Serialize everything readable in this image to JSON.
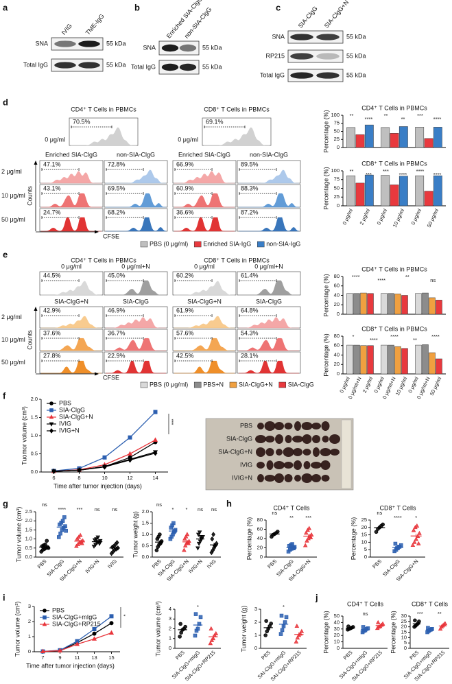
{
  "panel_labels": [
    "a",
    "b",
    "c",
    "d",
    "e",
    "f",
    "g",
    "h",
    "i",
    "j"
  ],
  "blots": {
    "a": {
      "lanes": [
        "IVIG",
        "TME-IgG"
      ],
      "rows": [
        "SNA",
        "Total IgG"
      ],
      "size": "55 kDa"
    },
    "b": {
      "lanes": [
        "Enriched SIA-ClgG",
        "non-SIA-ClgG"
      ],
      "rows": [
        "SNA",
        "Total IgG"
      ],
      "size": "55 kDa"
    },
    "c": {
      "lanes": [
        "SIA-ClgG",
        "SIA-ClgG+N"
      ],
      "rows": [
        "SNA",
        "RP215",
        "Total IgG"
      ],
      "size": "55 kDa"
    }
  },
  "flow": {
    "d": {
      "panels": [
        {
          "title": "CD4⁺ T Cells in PBMCs",
          "controls": [
            {
              "label": "0 μg/ml",
              "pct": "70.5%"
            }
          ],
          "columns": [
            {
              "name": "Enriched SIA-ClgG",
              "pcts": [
                "47.1%",
                "43.1%",
                "24.7%"
              ]
            },
            {
              "name": "non-SIA-ClgG",
              "pcts": [
                "72.8%",
                "69.5%",
                "68.2%"
              ]
            }
          ]
        },
        {
          "title": "CD8⁺ T Cells in PBMCs",
          "controls": [
            {
              "label": "0 μg/ml",
              "pct": "69.1%"
            }
          ],
          "columns": [
            {
              "name": "Enriched SIA-ClgG",
              "pcts": [
                "66.9%",
                "60.9%",
                "36.6%"
              ]
            },
            {
              "name": "non-SIA-ClgG",
              "pcts": [
                "89.5%",
                "88.3%",
                "87.2%"
              ]
            }
          ]
        }
      ],
      "doses": [
        "2 μg/ml",
        "10 μg/ml",
        "50 μg/ml"
      ],
      "ylabel": "Counts",
      "xlabel": "CFSE"
    },
    "e": {
      "panels": [
        {
          "title": "CD4⁺ T Cells in PBMCs",
          "controls": [
            {
              "label": "0 μg/ml",
              "pct": "44.5%"
            },
            {
              "label": "0 μg/ml+N",
              "pct": "45.0%"
            }
          ],
          "columns": [
            {
              "name": "SIA-ClgG+N",
              "pcts": [
                "42.9%",
                "37.6%",
                "27.8%"
              ]
            },
            {
              "name": "SIA-ClgG",
              "pcts": [
                "46.9%",
                "36.7%",
                "22.9%"
              ]
            }
          ]
        },
        {
          "title": "CD8⁺ T Cells in PBMCs",
          "controls": [
            {
              "label": "0 μg/ml",
              "pct": "60.2%"
            },
            {
              "label": "0 μg/ml+N",
              "pct": "61.4%"
            }
          ],
          "columns": [
            {
              "name": "SIA-ClgG+N",
              "pcts": [
                "61.9%",
                "57.6%",
                "42.5%"
              ]
            },
            {
              "name": "SIA-ClgG",
              "pcts": [
                "64.8%",
                "54.3%",
                "28.1%"
              ]
            }
          ]
        }
      ],
      "doses": [
        "2 μg/ml",
        "10 μg/ml",
        "50 μg/ml"
      ],
      "ylabel": "Counts",
      "xlabel": "CFSE"
    }
  },
  "photo": {
    "rows": [
      "PBS",
      "SIA-ClgG",
      "SIA-ClgG+N",
      "IVIG",
      "IVIG+N"
    ]
  },
  "chart_data": [
    {
      "type": "bar",
      "title": "CD4⁺ T Cells in PBMCs",
      "ylabel": "Percentage (%)",
      "ylim": [
        0,
        100
      ],
      "yticks": [
        0,
        25,
        50,
        75,
        100
      ],
      "series": [
        {
          "color": "#bfbfbf",
          "values": [
            62,
            62,
            63
          ]
        },
        {
          "color": "#e8393e",
          "values": [
            40,
            44,
            28
          ]
        },
        {
          "color": "#3a7ec6",
          "values": [
            70,
            65,
            63
          ]
        }
      ],
      "annotations": [
        "**",
        "****",
        "**",
        "**",
        "***",
        "****"
      ]
    },
    {
      "type": "bar",
      "title": "CD8⁺ T Cells in PBMCs",
      "ylabel": "Percentage (%)",
      "ylim": [
        0,
        100
      ],
      "yticks": [
        0,
        25,
        50,
        75,
        100
      ],
      "series": [
        {
          "name": "PBS (0 μg/ml)",
          "color": "#bfbfbf",
          "values": [
            86,
            87,
            86
          ]
        },
        {
          "name": "Enriched SIA-IgG",
          "color": "#e8393e",
          "values": [
            65,
            60,
            42
          ]
        },
        {
          "name": "non-SIA-IgG",
          "color": "#3a7ec6",
          "values": [
            88,
            85,
            86
          ]
        }
      ],
      "group_labels": [
        [
          "0 μg/ml",
          "2 μg/ml"
        ],
        [
          "0 μg/ml",
          "10 μg/ml"
        ],
        [
          "0 μg/ml",
          "50 μg/ml"
        ]
      ],
      "annotations": [
        "**",
        "***",
        "***",
        "****",
        "****",
        "****"
      ]
    },
    {
      "type": "bar",
      "title": "CD4⁺ T Cells in PBMCs",
      "ylabel": "Percentage (%)",
      "ylim": [
        0,
        80
      ],
      "yticks": [
        0,
        20,
        40,
        60,
        80
      ],
      "series": [
        {
          "color": "#d9d9d9",
          "values": [
            44,
            44,
            44
          ]
        },
        {
          "color": "#8c8c8c",
          "values": [
            44,
            44,
            45
          ]
        },
        {
          "color": "#f0a040",
          "values": [
            45,
            43,
            35
          ]
        },
        {
          "color": "#e8393e",
          "values": [
            44,
            40,
            30
          ]
        }
      ],
      "annotations": [
        "****",
        "****",
        "**",
        "ns"
      ]
    },
    {
      "type": "bar",
      "title": "CD8⁺ T Cells in PBMCs",
      "ylabel": "Percentage (%)",
      "ylim": [
        0,
        80
      ],
      "yticks": [
        0,
        20,
        40,
        60,
        80
      ],
      "series": [
        {
          "name": "PBS (0 μg/ml)",
          "color": "#d9d9d9",
          "values": [
            61,
            61,
            61
          ]
        },
        {
          "name": "PBS+N",
          "color": "#8c8c8c",
          "values": [
            61,
            61,
            62
          ]
        },
        {
          "name": "SIA-ClgG+N",
          "color": "#f0a040",
          "values": [
            60,
            58,
            45
          ]
        },
        {
          "name": "SIA-ClgG",
          "color": "#e8393e",
          "values": [
            60,
            54,
            32
          ]
        }
      ],
      "group_labels": [
        [
          "0 μg/ml",
          "0 μg/ml+N",
          "2 μg/ml"
        ],
        [
          "0 μg/ml",
          "0 μg/ml+N",
          "10 μg/ml"
        ],
        [
          "0 μg/ml",
          "0 μg/ml+N",
          "50 μg/ml"
        ]
      ],
      "annotations": [
        "*",
        "****",
        "****",
        "**",
        "****"
      ]
    },
    {
      "type": "line",
      "ylabel": "Tuomor volume (cm³)",
      "xlabel": "Time after tumor injection (days)",
      "x": [
        6,
        8,
        10,
        12,
        14
      ],
      "xlim": [
        5,
        15
      ],
      "xticks": [
        6,
        8,
        10,
        12,
        14
      ],
      "ylim": [
        0,
        2
      ],
      "yticks": [
        {
          "value": 0,
          "label": "0.0"
        },
        0.5,
        {
          "value": 1,
          "label": "1.0"
        },
        1.5,
        {
          "value": 2,
          "label": "2.0"
        }
      ],
      "series": [
        {
          "name": "PBS",
          "color": "#000000",
          "marker": "circle",
          "values": [
            0.02,
            0.05,
            0.15,
            0.4,
            0.82
          ]
        },
        {
          "name": "SIA-ClgG",
          "color": "#2c5fb0",
          "marker": "square",
          "values": [
            0.03,
            0.1,
            0.4,
            0.95,
            1.65
          ]
        },
        {
          "name": "SIA-ClgG+N",
          "color": "#e8343a",
          "marker": "triangle",
          "values": [
            0.02,
            0.06,
            0.2,
            0.5,
            0.88
          ]
        },
        {
          "name": "IVIG",
          "color": "#000000",
          "marker": "triangle-down",
          "values": [
            0.02,
            0.05,
            0.15,
            0.35,
            0.55
          ]
        },
        {
          "name": "IVIG+N",
          "color": "#000000",
          "marker": "diamond",
          "values": [
            0.02,
            0.05,
            0.14,
            0.33,
            0.52
          ]
        }
      ],
      "annotations": [
        "***"
      ]
    },
    {
      "type": "strip",
      "ylabel": "Tumor volume (cm³)",
      "categories": [
        "PBS",
        "SIA-ClgG",
        "SIA-ClgG+N",
        "IVIG+N",
        "IVIG"
      ],
      "colors": [
        "#000000",
        "#2c5fb0",
        "#e8343a",
        "#000000",
        "#000000"
      ],
      "markers": [
        "circle",
        "square",
        "triangle",
        "triangle-down",
        "diamond"
      ],
      "values": [
        [
          0.3,
          0.4,
          0.45,
          0.5,
          0.55,
          0.6,
          0.65,
          0.7,
          0.9,
          0.5
        ],
        [
          1.1,
          1.3,
          1.5,
          1.6,
          1.7,
          1.8,
          1.9,
          2.0,
          2.2,
          1.45
        ],
        [
          0.6,
          0.7,
          0.8,
          0.85,
          0.9,
          1.0,
          1.1,
          1.2,
          0.75
        ],
        [
          0.6,
          0.7,
          0.8,
          0.85,
          0.9,
          0.95,
          1.0,
          1.1,
          0.75
        ],
        [
          0.2,
          0.3,
          0.4,
          0.45,
          0.5,
          0.55,
          0.6,
          0.7,
          0.8
        ]
      ],
      "ylim": [
        0,
        2.5
      ],
      "yticks": [
        {
          "value": 0,
          "label": "0.0"
        },
        0.5,
        {
          "value": 1,
          "label": "1.0"
        },
        1.5,
        {
          "value": 2,
          "label": "2.0"
        },
        2.5
      ],
      "annotations": [
        "ns",
        "****",
        "***",
        "ns",
        "ns"
      ]
    },
    {
      "type": "strip",
      "ylabel": "Tumor weight (g)",
      "categories": [
        "PBS",
        "SIA-ClgG",
        "SIA-ClgG+N",
        "IVIG+N",
        "IVIG"
      ],
      "colors": [
        "#000000",
        "#2c5fb0",
        "#e8343a",
        "#000000",
        "#000000"
      ],
      "markers": [
        "circle",
        "square",
        "triangle",
        "triangle-down",
        "diamond"
      ],
      "values": [
        [
          0.3,
          0.45,
          0.55,
          0.6,
          0.7,
          0.8,
          0.9,
          1.0,
          0.65
        ],
        [
          0.8,
          0.9,
          1.0,
          1.1,
          1.2,
          1.3,
          1.4,
          1.5,
          1.15
        ],
        [
          0.3,
          0.5,
          0.6,
          0.65,
          0.7,
          0.8,
          0.9,
          1.0,
          0.6
        ],
        [
          0.4,
          0.6,
          0.7,
          0.8,
          0.9,
          1.0,
          1.1,
          0.9
        ],
        [
          0.2,
          0.3,
          0.4,
          0.5,
          0.6,
          0.8,
          1.0,
          0.5
        ]
      ],
      "ylim": [
        0,
        2
      ],
      "yticks": [
        {
          "value": 0,
          "label": "0.0"
        },
        0.5,
        {
          "value": 1,
          "label": "1.0"
        },
        1.5,
        {
          "value": 2,
          "label": "2.0"
        }
      ],
      "annotations": [
        "ns",
        "*",
        "*",
        "ns",
        "ns"
      ]
    },
    {
      "type": "strip",
      "title": "CD4⁺ T Cells",
      "ylabel": "Percentage (%)",
      "categories": [
        "PBS",
        "SIA-ClgG",
        "SIA-ClgG+N"
      ],
      "colors": [
        "#000000",
        "#2c5fb0",
        "#e8343a"
      ],
      "markers": [
        "circle",
        "square",
        "triangle"
      ],
      "values": [
        [
          44,
          48,
          50,
          52,
          55
        ],
        [
          12,
          16,
          18,
          20,
          22,
          24,
          26,
          28,
          19
        ],
        [
          25,
          35,
          40,
          45,
          48,
          52,
          58,
          62,
          42
        ]
      ],
      "ylim": [
        0,
        80
      ],
      "yticks": [
        0,
        20,
        40,
        60,
        80
      ],
      "annotations": [
        "ns",
        "**",
        "***"
      ]
    },
    {
      "type": "strip",
      "title": "CD8⁺ T Cells",
      "ylabel": "Percentage (%)",
      "categories": [
        "PBS",
        "SIA-ClgG",
        "SIA-ClgG+N"
      ],
      "colors": [
        "#000000",
        "#2c5fb0",
        "#e8343a"
      ],
      "markers": [
        "circle",
        "square",
        "triangle"
      ],
      "values": [
        [
          17,
          19,
          20,
          21,
          22
        ],
        [
          4,
          5,
          6,
          7,
          8,
          9,
          6,
          7
        ],
        [
          8,
          10,
          12,
          14,
          16,
          18,
          20,
          21,
          9
        ]
      ],
      "ylim": [
        0,
        25
      ],
      "yticks": [
        0,
        5,
        10,
        15,
        20,
        25
      ],
      "annotations": [
        "ns",
        "****",
        "*"
      ]
    },
    {
      "type": "line",
      "ylabel": "Tumor volume (cm³)",
      "xlabel": "Time after tumor injection (days)",
      "x": [
        7,
        9,
        11,
        13,
        15
      ],
      "xlim": [
        6,
        16
      ],
      "xticks": [
        7,
        9,
        11,
        13,
        15
      ],
      "ylim": [
        0,
        3
      ],
      "yticks": [
        0,
        1,
        2,
        3
      ],
      "series": [
        {
          "name": "PBS",
          "color": "#000000",
          "marker": "circle",
          "values": [
            0.02,
            0.08,
            0.6,
            1.2,
            1.9
          ]
        },
        {
          "name": "SIA-ClgG+mIgG",
          "color": "#2c5fb0",
          "marker": "square",
          "values": [
            0.02,
            0.1,
            0.7,
            1.5,
            2.35
          ]
        },
        {
          "name": "SIA-ClgG+RP215",
          "color": "#e8343a",
          "marker": "triangle",
          "values": [
            0.02,
            0.07,
            0.5,
            0.85,
            1.25
          ]
        }
      ],
      "annotations": [
        "*"
      ]
    },
    {
      "type": "strip",
      "ylabel": "Tumor volume (cm³)",
      "categories": [
        "PBS",
        "SIA-ClgG+mIgG",
        "SIA-ClgG+RP215"
      ],
      "colors": [
        "#000000",
        "#2c5fb0",
        "#e8343a"
      ],
      "markers": [
        "circle",
        "square",
        "triangle"
      ],
      "values": [
        [
          1.2,
          1.6,
          1.9,
          2.0,
          2.2,
          2.5
        ],
        [
          1.3,
          1.8,
          2.0,
          2.5,
          3.2,
          3.5
        ],
        [
          0.5,
          0.8,
          1.0,
          1.3,
          1.5,
          2.0
        ]
      ],
      "ylim": [
        0,
        4
      ],
      "yticks": [
        0,
        1,
        2,
        3,
        4
      ],
      "annotations": [
        "*"
      ]
    },
    {
      "type": "strip",
      "ylabel": "Tumor weight (g)",
      "categories": [
        "PBS",
        "SAI-ClgG+mIgG",
        "SAI-ClgG+RP215"
      ],
      "colors": [
        "#000000",
        "#2c5fb0",
        "#e8343a"
      ],
      "markers": [
        "circle",
        "square",
        "triangle"
      ],
      "values": [
        [
          1.0,
          1.3,
          1.5,
          1.7,
          1.9,
          2.1
        ],
        [
          1.1,
          1.4,
          1.7,
          2.0,
          2.4,
          2.5
        ],
        [
          0.5,
          0.8,
          1.0,
          1.1,
          1.3,
          1.7
        ]
      ],
      "ylim": [
        0,
        3
      ],
      "yticks": [
        0,
        1,
        2,
        3
      ],
      "annotations": [
        "*"
      ]
    },
    {
      "type": "strip",
      "title": "CD4⁺ T Cells",
      "ylabel": "Percentage (%)",
      "categories": [
        "PBS",
        "SIA-ClgG+mIgG",
        "SIA-ClgG+RP215"
      ],
      "colors": [
        "#000000",
        "#2c5fb0",
        "#e8343a"
      ],
      "markers": [
        "circle",
        "square",
        "triangle"
      ],
      "values": [
        [
          29,
          30,
          31,
          32,
          33,
          34
        ],
        [
          25,
          27,
          28,
          30,
          31,
          33
        ],
        [
          31,
          33,
          34,
          36,
          38,
          40
        ]
      ],
      "ylim": [
        0,
        50
      ],
      "yticks": [
        0,
        10,
        20,
        30,
        40,
        50
      ],
      "annotations": [
        "ns"
      ]
    },
    {
      "type": "strip",
      "title": "CD8⁺ T Cells",
      "ylabel": "Percentage (%)",
      "categories": [
        "PBS",
        "SIA-ClgG+mIgG",
        "SIA-ClgG+RP215"
      ],
      "colors": [
        "#000000",
        "#2c5fb0",
        "#e8343a"
      ],
      "markers": [
        "circle",
        "square",
        "triangle"
      ],
      "values": [
        [
          20,
          21,
          22,
          23,
          25,
          26
        ],
        [
          15,
          16,
          17,
          17.5,
          18,
          19
        ],
        [
          18,
          20,
          21,
          22,
          23
        ]
      ],
      "ylim": [
        0,
        30
      ],
      "yticks": [
        0,
        5,
        10,
        15,
        20,
        25,
        30
      ],
      "annotations": [
        "***",
        "**"
      ]
    }
  ]
}
